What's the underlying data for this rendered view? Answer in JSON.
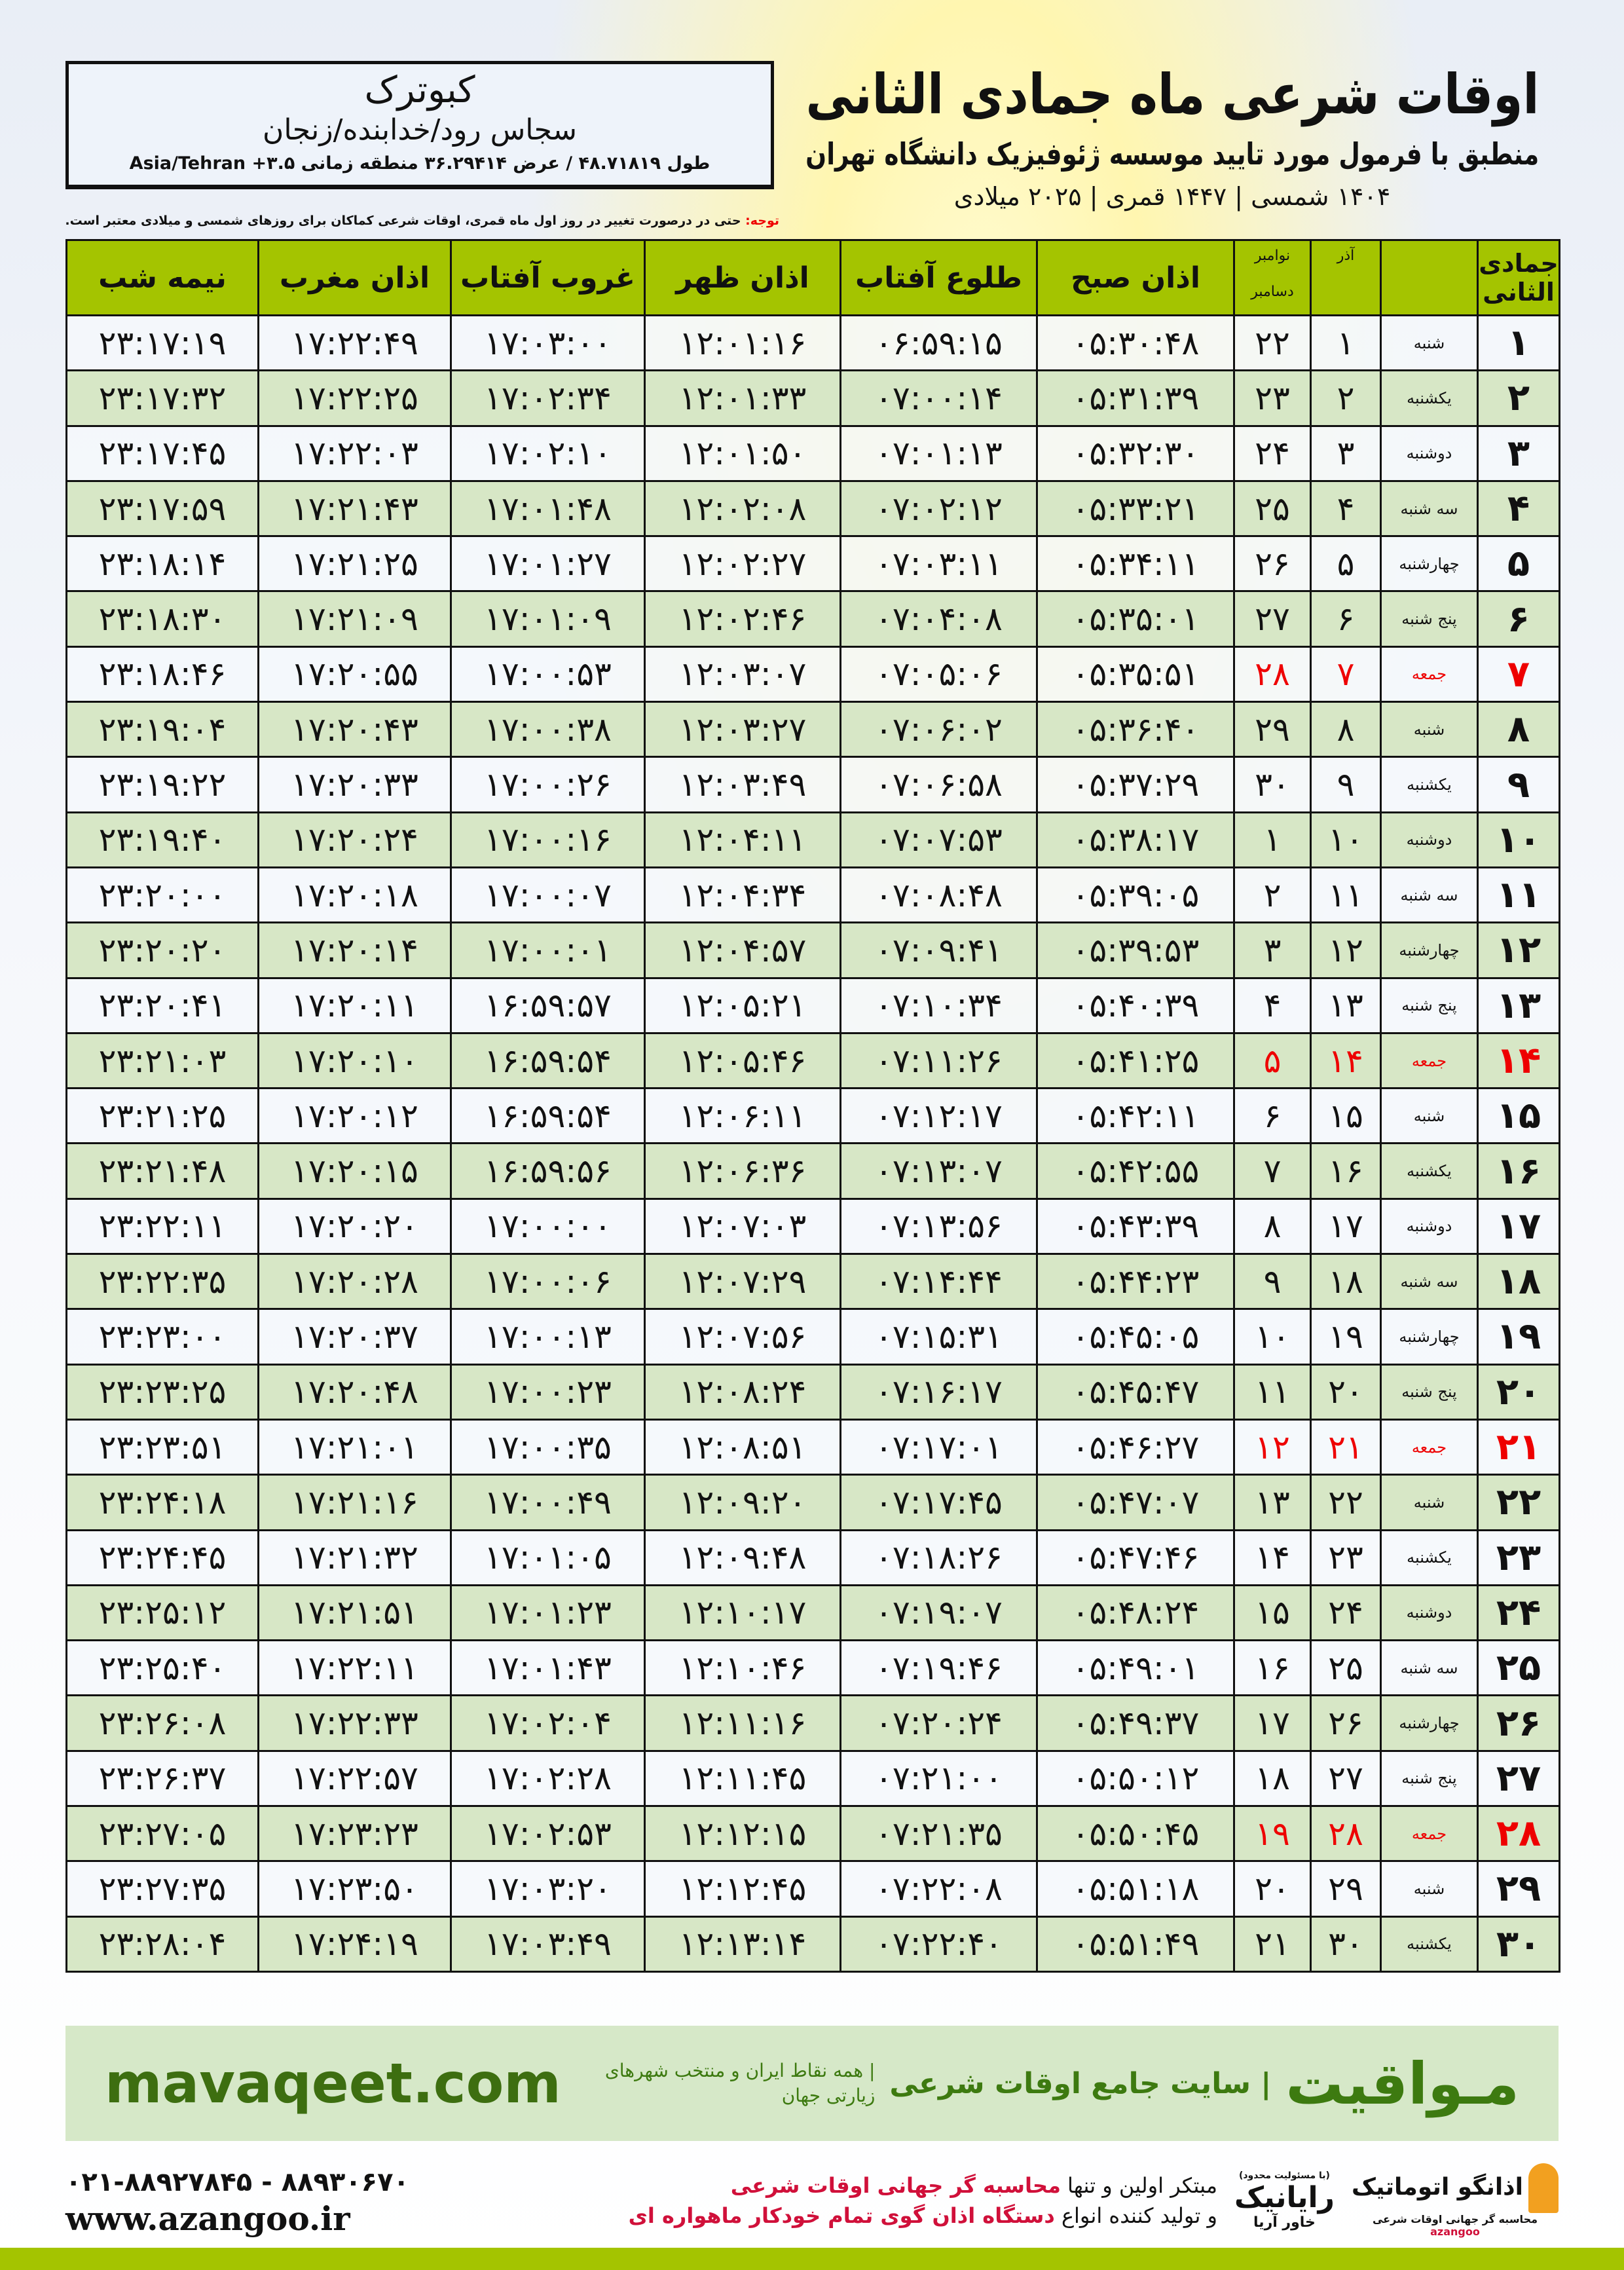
{
  "header": {
    "title": "اوقات شرعی ماه جمادی الثانی",
    "subtitle": "منطبق با فرمول مورد تایید موسسه ژئوفیزیک دانشگاه تهران",
    "dates": "۱۴۰۴ شمسی | ۱۴۴۷ قمری | ۲۰۲۵ میلادی"
  },
  "location": {
    "name": "کبوترک",
    "path": "سجاس رود/خدابنده/زنجان",
    "coords": "طول ۴۸.۷۱۸۱۹ / عرض ۳۶.۲۹۴۱۴ منطقه زمانی ۳.۵+ Asia/Tehran"
  },
  "note": {
    "label": "توجه:",
    "text": " حتی در درصورت تغییر در روز اول ماه قمری، اوقات شرعی کماکان برای روزهای شمسی و میلادی معتبر است."
  },
  "colors": {
    "header_green": "#a4c400",
    "row_green": "#d7e7c6",
    "friday_red": "#ee0000",
    "brand_green": "#3d7a10"
  },
  "table": {
    "headers": {
      "hijri": "جمادی الثانی",
      "azar": "آذر",
      "greg_top": "نوامبر",
      "greg_bottom": "دسامبر",
      "fajr": "اذان صبح",
      "sunrise": "طلوع آفتاب",
      "dhuhr": "اذان ظهر",
      "sunset": "غروب آفتاب",
      "maghrib": "اذان مغرب",
      "midnight": "نیمه شب"
    },
    "rows": [
      [
        "۱",
        "شنبه",
        "۱",
        "۲۲",
        "۰۵:۳۰:۴۸",
        "۰۶:۵۹:۱۵",
        "۱۲:۰۱:۱۶",
        "۱۷:۰۳:۰۰",
        "۱۷:۲۲:۴۹",
        "۲۳:۱۷:۱۹"
      ],
      [
        "۲",
        "یکشنبه",
        "۲",
        "۲۳",
        "۰۵:۳۱:۳۹",
        "۰۷:۰۰:۱۴",
        "۱۲:۰۱:۳۳",
        "۱۷:۰۲:۳۴",
        "۱۷:۲۲:۲۵",
        "۲۳:۱۷:۳۲"
      ],
      [
        "۳",
        "دوشنبه",
        "۳",
        "۲۴",
        "۰۵:۳۲:۳۰",
        "۰۷:۰۱:۱۳",
        "۱۲:۰۱:۵۰",
        "۱۷:۰۲:۱۰",
        "۱۷:۲۲:۰۳",
        "۲۳:۱۷:۴۵"
      ],
      [
        "۴",
        "سه شنبه",
        "۴",
        "۲۵",
        "۰۵:۳۳:۲۱",
        "۰۷:۰۲:۱۲",
        "۱۲:۰۲:۰۸",
        "۱۷:۰۱:۴۸",
        "۱۷:۲۱:۴۳",
        "۲۳:۱۷:۵۹"
      ],
      [
        "۵",
        "چهارشنبه",
        "۵",
        "۲۶",
        "۰۵:۳۴:۱۱",
        "۰۷:۰۳:۱۱",
        "۱۲:۰۲:۲۷",
        "۱۷:۰۱:۲۷",
        "۱۷:۲۱:۲۵",
        "۲۳:۱۸:۱۴"
      ],
      [
        "۶",
        "پنج شنبه",
        "۶",
        "۲۷",
        "۰۵:۳۵:۰۱",
        "۰۷:۰۴:۰۸",
        "۱۲:۰۲:۴۶",
        "۱۷:۰۱:۰۹",
        "۱۷:۲۱:۰۹",
        "۲۳:۱۸:۳۰"
      ],
      [
        "۷",
        "جمعه",
        "۷",
        "۲۸",
        "۰۵:۳۵:۵۱",
        "۰۷:۰۵:۰۶",
        "۱۲:۰۳:۰۷",
        "۱۷:۰۰:۵۳",
        "۱۷:۲۰:۵۵",
        "۲۳:۱۸:۴۶"
      ],
      [
        "۸",
        "شنبه",
        "۸",
        "۲۹",
        "۰۵:۳۶:۴۰",
        "۰۷:۰۶:۰۲",
        "۱۲:۰۳:۲۷",
        "۱۷:۰۰:۳۸",
        "۱۷:۲۰:۴۳",
        "۲۳:۱۹:۰۴"
      ],
      [
        "۹",
        "یکشنبه",
        "۹",
        "۳۰",
        "۰۵:۳۷:۲۹",
        "۰۷:۰۶:۵۸",
        "۱۲:۰۳:۴۹",
        "۱۷:۰۰:۲۶",
        "۱۷:۲۰:۳۳",
        "۲۳:۱۹:۲۲"
      ],
      [
        "۱۰",
        "دوشنبه",
        "۱۰",
        "۱",
        "۰۵:۳۸:۱۷",
        "۰۷:۰۷:۵۳",
        "۱۲:۰۴:۱۱",
        "۱۷:۰۰:۱۶",
        "۱۷:۲۰:۲۴",
        "۲۳:۱۹:۴۰"
      ],
      [
        "۱۱",
        "سه شنبه",
        "۱۱",
        "۲",
        "۰۵:۳۹:۰۵",
        "۰۷:۰۸:۴۸",
        "۱۲:۰۴:۳۴",
        "۱۷:۰۰:۰۷",
        "۱۷:۲۰:۱۸",
        "۲۳:۲۰:۰۰"
      ],
      [
        "۱۲",
        "چهارشنبه",
        "۱۲",
        "۳",
        "۰۵:۳۹:۵۳",
        "۰۷:۰۹:۴۱",
        "۱۲:۰۴:۵۷",
        "۱۷:۰۰:۰۱",
        "۱۷:۲۰:۱۴",
        "۲۳:۲۰:۲۰"
      ],
      [
        "۱۳",
        "پنج شنبه",
        "۱۳",
        "۴",
        "۰۵:۴۰:۳۹",
        "۰۷:۱۰:۳۴",
        "۱۲:۰۵:۲۱",
        "۱۶:۵۹:۵۷",
        "۱۷:۲۰:۱۱",
        "۲۳:۲۰:۴۱"
      ],
      [
        "۱۴",
        "جمعه",
        "۱۴",
        "۵",
        "۰۵:۴۱:۲۵",
        "۰۷:۱۱:۲۶",
        "۱۲:۰۵:۴۶",
        "۱۶:۵۹:۵۴",
        "۱۷:۲۰:۱۰",
        "۲۳:۲۱:۰۳"
      ],
      [
        "۱۵",
        "شنبه",
        "۱۵",
        "۶",
        "۰۵:۴۲:۱۱",
        "۰۷:۱۲:۱۷",
        "۱۲:۰۶:۱۱",
        "۱۶:۵۹:۵۴",
        "۱۷:۲۰:۱۲",
        "۲۳:۲۱:۲۵"
      ],
      [
        "۱۶",
        "یکشنبه",
        "۱۶",
        "۷",
        "۰۵:۴۲:۵۵",
        "۰۷:۱۳:۰۷",
        "۱۲:۰۶:۳۶",
        "۱۶:۵۹:۵۶",
        "۱۷:۲۰:۱۵",
        "۲۳:۲۱:۴۸"
      ],
      [
        "۱۷",
        "دوشنبه",
        "۱۷",
        "۸",
        "۰۵:۴۳:۳۹",
        "۰۷:۱۳:۵۶",
        "۱۲:۰۷:۰۳",
        "۱۷:۰۰:۰۰",
        "۱۷:۲۰:۲۰",
        "۲۳:۲۲:۱۱"
      ],
      [
        "۱۸",
        "سه شنبه",
        "۱۸",
        "۹",
        "۰۵:۴۴:۲۳",
        "۰۷:۱۴:۴۴",
        "۱۲:۰۷:۲۹",
        "۱۷:۰۰:۰۶",
        "۱۷:۲۰:۲۸",
        "۲۳:۲۲:۳۵"
      ],
      [
        "۱۹",
        "چهارشنبه",
        "۱۹",
        "۱۰",
        "۰۵:۴۵:۰۵",
        "۰۷:۱۵:۳۱",
        "۱۲:۰۷:۵۶",
        "۱۷:۰۰:۱۳",
        "۱۷:۲۰:۳۷",
        "۲۳:۲۳:۰۰"
      ],
      [
        "۲۰",
        "پنج شنبه",
        "۲۰",
        "۱۱",
        "۰۵:۴۵:۴۷",
        "۰۷:۱۶:۱۷",
        "۱۲:۰۸:۲۴",
        "۱۷:۰۰:۲۳",
        "۱۷:۲۰:۴۸",
        "۲۳:۲۳:۲۵"
      ],
      [
        "۲۱",
        "جمعه",
        "۲۱",
        "۱۲",
        "۰۵:۴۶:۲۷",
        "۰۷:۱۷:۰۱",
        "۱۲:۰۸:۵۱",
        "۱۷:۰۰:۳۵",
        "۱۷:۲۱:۰۱",
        "۲۳:۲۳:۵۱"
      ],
      [
        "۲۲",
        "شنبه",
        "۲۲",
        "۱۳",
        "۰۵:۴۷:۰۷",
        "۰۷:۱۷:۴۵",
        "۱۲:۰۹:۲۰",
        "۱۷:۰۰:۴۹",
        "۱۷:۲۱:۱۶",
        "۲۳:۲۴:۱۸"
      ],
      [
        "۲۳",
        "یکشنبه",
        "۲۳",
        "۱۴",
        "۰۵:۴۷:۴۶",
        "۰۷:۱۸:۲۶",
        "۱۲:۰۹:۴۸",
        "۱۷:۰۱:۰۵",
        "۱۷:۲۱:۳۲",
        "۲۳:۲۴:۴۵"
      ],
      [
        "۲۴",
        "دوشنبه",
        "۲۴",
        "۱۵",
        "۰۵:۴۸:۲۴",
        "۰۷:۱۹:۰۷",
        "۱۲:۱۰:۱۷",
        "۱۷:۰۱:۲۳",
        "۱۷:۲۱:۵۱",
        "۲۳:۲۵:۱۲"
      ],
      [
        "۲۵",
        "سه شنبه",
        "۲۵",
        "۱۶",
        "۰۵:۴۹:۰۱",
        "۰۷:۱۹:۴۶",
        "۱۲:۱۰:۴۶",
        "۱۷:۰۱:۴۳",
        "۱۷:۲۲:۱۱",
        "۲۳:۲۵:۴۰"
      ],
      [
        "۲۶",
        "چهارشنبه",
        "۲۶",
        "۱۷",
        "۰۵:۴۹:۳۷",
        "۰۷:۲۰:۲۴",
        "۱۲:۱۱:۱۶",
        "۱۷:۰۲:۰۴",
        "۱۷:۲۲:۳۳",
        "۲۳:۲۶:۰۸"
      ],
      [
        "۲۷",
        "پنج شنبه",
        "۲۷",
        "۱۸",
        "۰۵:۵۰:۱۲",
        "۰۷:۲۱:۰۰",
        "۱۲:۱۱:۴۵",
        "۱۷:۰۲:۲۸",
        "۱۷:۲۲:۵۷",
        "۲۳:۲۶:۳۷"
      ],
      [
        "۲۸",
        "جمعه",
        "۲۸",
        "۱۹",
        "۰۵:۵۰:۴۵",
        "۰۷:۲۱:۳۵",
        "۱۲:۱۲:۱۵",
        "۱۷:۰۲:۵۳",
        "۱۷:۲۳:۲۳",
        "۲۳:۲۷:۰۵"
      ],
      [
        "۲۹",
        "شنبه",
        "۲۹",
        "۲۰",
        "۰۵:۵۱:۱۸",
        "۰۷:۲۲:۰۸",
        "۱۲:۱۲:۴۵",
        "۱۷:۰۳:۲۰",
        "۱۷:۲۳:۵۰",
        "۲۳:۲۷:۳۵"
      ],
      [
        "۳۰",
        "یکشنبه",
        "۳۰",
        "۲۱",
        "۰۵:۵۱:۴۹",
        "۰۷:۲۲:۴۰",
        "۱۲:۱۳:۱۴",
        "۱۷:۰۳:۴۹",
        "۱۷:۲۴:۱۹",
        "۲۳:۲۸:۰۴"
      ]
    ]
  },
  "banner": {
    "brand": "مـواقیت",
    "tagline": "| سایت جامع اوقات شرعی",
    "sub": "| همه نقاط ایران و منتخب شهرهای زیارتی جهان",
    "site": "mavaqeet.com"
  },
  "footer": {
    "phone": "۰۲۱-۸۸۹۲۷۸۴۵ - ۸۸۹۳۰۶۷۰",
    "web": "www.azangoo.ir",
    "line1a": "مبتکر اولین و تنها ",
    "line1b": "محاسبه گر جهانی اوقات شرعی",
    "line2a": "و تولید کننده انواع ",
    "line2b": "دستگاه اذان گوی تمام خودکار ماهواره ای",
    "logo_rayanik": "رایانیک",
    "logo_rayanik_sub": "خاور آریا",
    "logo_rayanik_tiny": "(با مسئولیت محدود)",
    "logo_azangoo": "اذانگو اتوماتیک",
    "logo_azangoo_sub": "محاسبه گر جهانی اوقات شرعی",
    "logo_azangoo_en": "azangoo"
  }
}
